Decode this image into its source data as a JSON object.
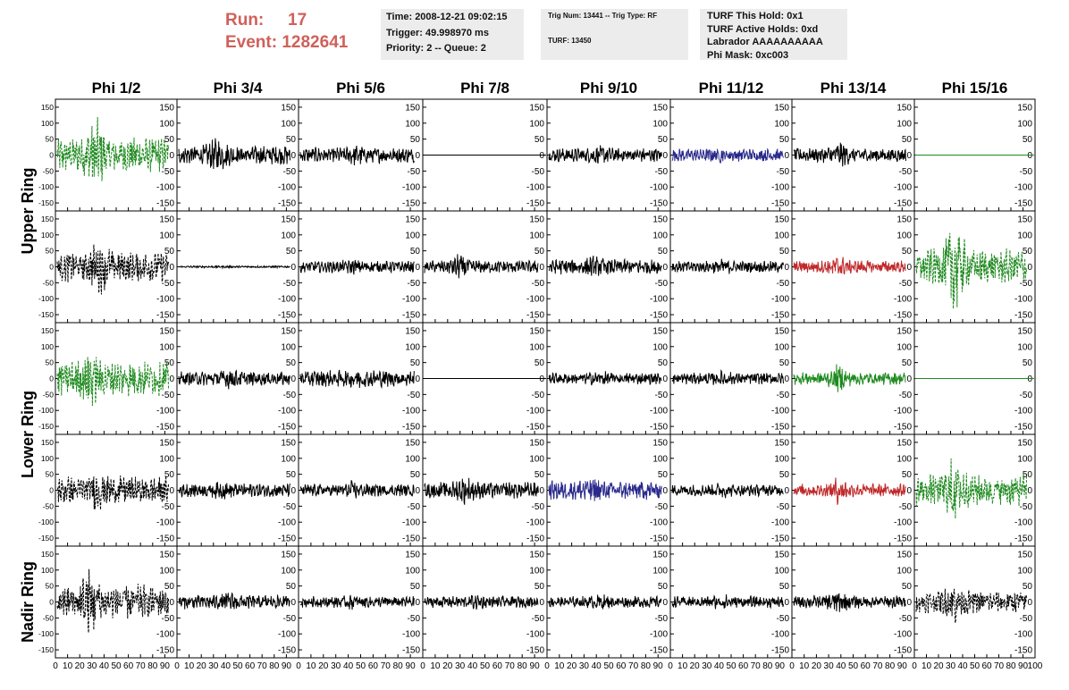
{
  "header": {
    "run_label": "Run:",
    "run_value": "17",
    "event_label": "Event:",
    "event_value": "1282641",
    "box1": [
      "Time: 2008-12-21 09:02:15",
      "Trigger: 49.998970 ms",
      "Priority: 2 -- Queue: 2"
    ],
    "box2": [
      "Trig Num: 13441 -- Trig Type: RF",
      "TURF: 13450"
    ],
    "box3": [
      "TURF This Hold: 0x1",
      "TURF Active Holds: 0xd",
      "Labrador AAAAAAAAAA",
      "Phi Mask: 0xc003"
    ]
  },
  "colors": {
    "run_text": "#d0605a",
    "info_bg": "#ececec",
    "trace_black": "#000000",
    "trace_green": "#1f8a1f",
    "trace_blue": "#2a2a8c",
    "trace_red": "#c0282a"
  },
  "chart_data": {
    "type": "line",
    "columns": [
      "Phi 1/2",
      "Phi 3/4",
      "Phi 5/6",
      "Phi 7/8",
      "Phi 9/10",
      "Phi 11/12",
      "Phi 13/14",
      "Phi 15/16"
    ],
    "row_groups": [
      {
        "label": "Upper Ring",
        "rows": 2
      },
      {
        "label": "Lower Ring",
        "rows": 2
      },
      {
        "label": "Nadir Ring",
        "rows": 1
      }
    ],
    "xlim": [
      0,
      100
    ],
    "ylim": [
      -175,
      175
    ],
    "xticks": [
      "0",
      "10",
      "20",
      "30",
      "40",
      "50",
      "60",
      "70",
      "80",
      "90",
      "100"
    ],
    "yticks": [
      "150",
      "100",
      "50",
      "0",
      "-50",
      "-100",
      "-150"
    ],
    "panels": [
      [
        {
          "color": "green",
          "dashed": true,
          "amp": 55,
          "burst": 120,
          "burst_at": 34
        },
        {
          "color": "black",
          "dashed": false,
          "amp": 30,
          "burst": 55,
          "burst_at": 35
        },
        {
          "color": "black",
          "dashed": false,
          "amp": 24,
          "burst": 35,
          "burst_at": 50
        },
        {
          "color": "black",
          "dashed": false,
          "amp": 0,
          "burst": 0,
          "burst_at": 0
        },
        {
          "color": "black",
          "dashed": false,
          "amp": 22,
          "burst": 30,
          "burst_at": 45
        },
        {
          "color": "blue",
          "dashed": false,
          "amp": 20,
          "burst": 30,
          "burst_at": 40
        },
        {
          "color": "black",
          "dashed": false,
          "amp": 22,
          "burst": 45,
          "burst_at": 40
        },
        {
          "color": "green",
          "dashed": false,
          "amp": 0,
          "burst": 0,
          "burst_at": 0
        }
      ],
      [
        {
          "color": "black",
          "dashed": true,
          "amp": 48,
          "burst": 85,
          "burst_at": 38
        },
        {
          "color": "black",
          "dashed": false,
          "amp": 3,
          "burst": 4,
          "burst_at": 40
        },
        {
          "color": "black",
          "dashed": false,
          "amp": 18,
          "burst": 25,
          "burst_at": 45
        },
        {
          "color": "black",
          "dashed": false,
          "amp": 20,
          "burst": 40,
          "burst_at": 30
        },
        {
          "color": "black",
          "dashed": false,
          "amp": 24,
          "burst": 35,
          "burst_at": 40
        },
        {
          "color": "black",
          "dashed": false,
          "amp": 18,
          "burst": 25,
          "burst_at": 45
        },
        {
          "color": "red",
          "dashed": false,
          "amp": 20,
          "burst": 35,
          "burst_at": 40
        },
        {
          "color": "green",
          "dashed": true,
          "amp": 55,
          "burst": 150,
          "burst_at": 35
        }
      ],
      [
        {
          "color": "green",
          "dashed": true,
          "amp": 55,
          "burst": 100,
          "burst_at": 30
        },
        {
          "color": "black",
          "dashed": false,
          "amp": 22,
          "burst": 35,
          "burst_at": 45
        },
        {
          "color": "black",
          "dashed": false,
          "amp": 26,
          "burst": 35,
          "burst_at": 50
        },
        {
          "color": "black",
          "dashed": false,
          "amp": 0,
          "burst": 0,
          "burst_at": 0
        },
        {
          "color": "black",
          "dashed": false,
          "amp": 18,
          "burst": 25,
          "burst_at": 45
        },
        {
          "color": "black",
          "dashed": false,
          "amp": 18,
          "burst": 25,
          "burst_at": 45
        },
        {
          "color": "green",
          "dashed": false,
          "amp": 20,
          "burst": 45,
          "burst_at": 40
        },
        {
          "color": "green",
          "dashed": false,
          "amp": 0,
          "burst": 0,
          "burst_at": 0
        }
      ],
      [
        {
          "color": "black",
          "dashed": true,
          "amp": 45,
          "burst": 65,
          "burst_at": 35
        },
        {
          "color": "black",
          "dashed": false,
          "amp": 22,
          "burst": 30,
          "burst_at": 40
        },
        {
          "color": "black",
          "dashed": false,
          "amp": 20,
          "burst": 30,
          "burst_at": 45
        },
        {
          "color": "black",
          "dashed": false,
          "amp": 26,
          "burst": 45,
          "burst_at": 35
        },
        {
          "color": "blue",
          "dashed": false,
          "amp": 30,
          "burst": 50,
          "burst_at": 35
        },
        {
          "color": "black",
          "dashed": false,
          "amp": 18,
          "burst": 25,
          "burst_at": 45
        },
        {
          "color": "red",
          "dashed": false,
          "amp": 20,
          "burst": 45,
          "burst_at": 40
        },
        {
          "color": "green",
          "dashed": true,
          "amp": 50,
          "burst": 110,
          "burst_at": 35
        }
      ],
      [
        {
          "color": "black",
          "dashed": true,
          "amp": 55,
          "burst": 120,
          "burst_at": 30
        },
        {
          "color": "black",
          "dashed": false,
          "amp": 22,
          "burst": 35,
          "burst_at": 45
        },
        {
          "color": "black",
          "dashed": false,
          "amp": 18,
          "burst": 25,
          "burst_at": 45
        },
        {
          "color": "black",
          "dashed": false,
          "amp": 18,
          "burst": 25,
          "burst_at": 45
        },
        {
          "color": "black",
          "dashed": false,
          "amp": 18,
          "burst": 25,
          "burst_at": 45
        },
        {
          "color": "black",
          "dashed": false,
          "amp": 18,
          "burst": 25,
          "burst_at": 45
        },
        {
          "color": "black",
          "dashed": false,
          "amp": 20,
          "burst": 40,
          "burst_at": 40
        },
        {
          "color": "black",
          "dashed": true,
          "amp": 35,
          "burst": 70,
          "burst_at": 35
        }
      ]
    ]
  }
}
